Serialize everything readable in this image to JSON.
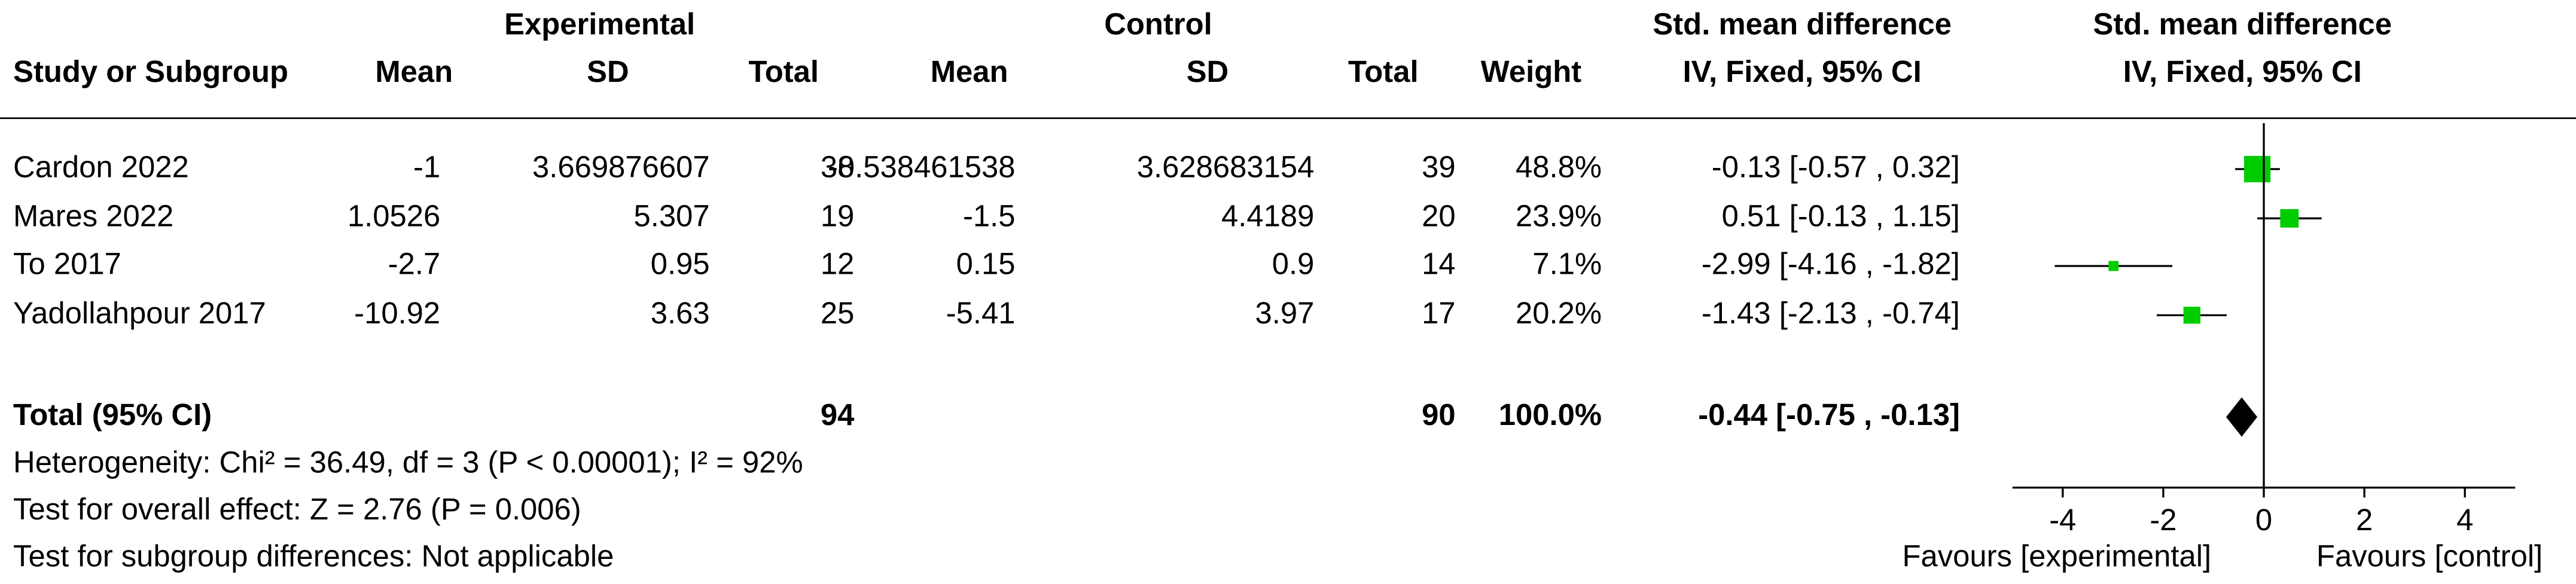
{
  "chart_data": {
    "type": "forest",
    "headers": {
      "experimental": "Experimental",
      "control": "Control",
      "smd_top": "Std. mean difference",
      "smd_bottom": "IV, Fixed, 95% CI",
      "plot_top": "Std. mean difference",
      "plot_bottom": "IV, Fixed, 95% CI",
      "study": "Study or Subgroup",
      "mean_e": "Mean",
      "sd_e": "SD",
      "total_e": "Total",
      "mean_c": "Mean",
      "sd_c": "SD",
      "total_c": "Total",
      "weight": "Weight"
    },
    "studies": [
      {
        "name": "Cardon 2022",
        "mean_e": "-1",
        "sd_e": "3.669876607",
        "total_e": "38",
        "mean_c": "-0.538461538",
        "sd_c": "3.628683154",
        "total_c": "39",
        "weight": 48.8,
        "weight_label": "48.8%",
        "smd": -0.13,
        "lower": -0.57,
        "upper": 0.32,
        "ci_label": "-0.13 [-0.57 , 0.32]"
      },
      {
        "name": "Mares 2022",
        "mean_e": "1.0526",
        "sd_e": "5.307",
        "total_e": "19",
        "mean_c": "-1.5",
        "sd_c": "4.4189",
        "total_c": "20",
        "weight": 23.9,
        "weight_label": "23.9%",
        "smd": 0.51,
        "lower": -0.13,
        "upper": 1.15,
        "ci_label": "0.51 [-0.13 , 1.15]"
      },
      {
        "name": "To 2017",
        "mean_e": "-2.7",
        "sd_e": "0.95",
        "total_e": "12",
        "mean_c": "0.15",
        "sd_c": "0.9",
        "total_c": "14",
        "weight": 7.1,
        "weight_label": "7.1%",
        "smd": -2.99,
        "lower": -4.16,
        "upper": -1.82,
        "ci_label": "-2.99 [-4.16 , -1.82]"
      },
      {
        "name": "Yadollahpour 2017",
        "mean_e": "-10.92",
        "sd_e": "3.63",
        "total_e": "25",
        "mean_c": "-5.41",
        "sd_c": "3.97",
        "total_c": "17",
        "weight": 20.2,
        "weight_label": "20.2%",
        "smd": -1.43,
        "lower": -2.13,
        "upper": -0.74,
        "ci_label": "-1.43 [-2.13 , -0.74]"
      }
    ],
    "total": {
      "name": "Total (95% CI)",
      "total_e": "94",
      "total_c": "90",
      "weight": 100,
      "weight_label": "100.0%",
      "smd": -0.44,
      "lower": -0.75,
      "upper": -0.13,
      "ci_label": "-0.44 [-0.75 , -0.13]"
    },
    "notes": [
      "Heterogeneity: Chi² = 36.49, df = 3 (P < 0.00001); I² = 92%",
      "Test for overall effect: Z = 2.76 (P = 0.006)",
      "Test for subgroup differences: Not applicable"
    ],
    "xlim": [
      -5,
      5
    ],
    "xticks": [
      -4,
      -2,
      0,
      2,
      4
    ],
    "x_labels": {
      "left": "Favours [experimental]",
      "right": "Favours [control]"
    },
    "color": "#00cc00"
  }
}
